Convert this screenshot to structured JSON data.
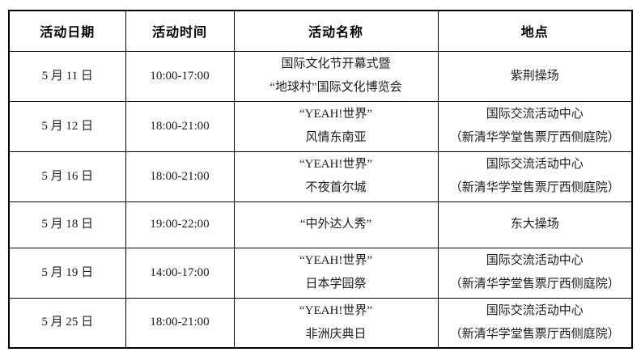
{
  "table": {
    "headers": [
      "活动日期",
      "活动时间",
      "活动名称",
      "地点"
    ],
    "rows": [
      {
        "date": "5 月 11 日",
        "time": "10:00-17:00",
        "name": [
          "国际文化节开幕式暨",
          "“地球村”国际文化博览会"
        ],
        "location": [
          "紫荆操场"
        ]
      },
      {
        "date": "5 月 12 日",
        "time": "18:00-21:00",
        "name": [
          "“YEAH!世界”",
          "风情东南亚"
        ],
        "location": [
          "国际交流活动中心",
          "（新清华学堂售票厅西侧庭院）"
        ]
      },
      {
        "date": "5 月 16 日",
        "time": "18:00-21:00",
        "name": [
          "“YEAH!世界”",
          "不夜首尔城"
        ],
        "location": [
          "国际交流活动中心",
          "（新清华学堂售票厅西侧庭院）"
        ]
      },
      {
        "date": "5 月 18 日",
        "time": "19:00-22:00",
        "name": [
          "“中外达人秀”"
        ],
        "location": [
          "东大操场"
        ]
      },
      {
        "date": "5 月 19 日",
        "time": "14:00-17:00",
        "name": [
          "“YEAH!世界”",
          "日本学园祭"
        ],
        "location": [
          "国际交流活动中心",
          "（新清华学堂售票厅西侧庭院）"
        ]
      },
      {
        "date": "5 月 25 日",
        "time": "18:00-21:00",
        "name": [
          "“YEAH!世界”",
          "非洲庆典日"
        ],
        "location": [
          "国际交流活动中心",
          "（新清华学堂售票厅西侧庭院）"
        ]
      }
    ]
  }
}
